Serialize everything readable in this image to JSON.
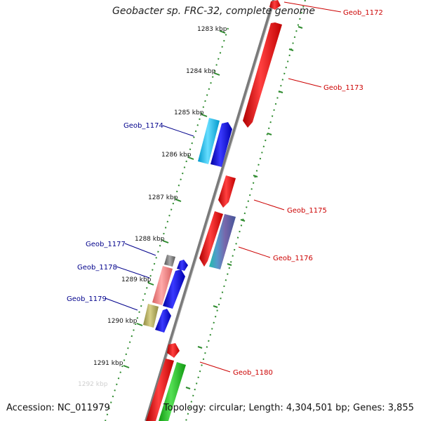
{
  "title": "Geobacter sp. FRC-32, complete genome",
  "accession": "Accession: NC_011979",
  "topology": "Topology: circular; Length: 4,304,501 bp; Genes: 3,855",
  "colors": {
    "backbone": "#7a7a7a",
    "tick": "#2e8b2e",
    "fwd_label": "#00008b",
    "rev_label": "#cc0000",
    "red_gene": "#ff0000",
    "blue_gene": "#0000ff",
    "cyan_gene": "#22bbee",
    "green_gene": "#33cc33"
  },
  "kbp_labels": [
    "1283 kbp",
    "1284 kbp",
    "1285 kbp",
    "1286 kbp",
    "1287 kbp",
    "1288 kbp",
    "1289 kbp",
    "1290 kbp",
    "1291 kbp",
    "1292 kbp"
  ],
  "gene_labels": {
    "geob_1172": "Geob_1172",
    "geob_1173": "Geob_1173",
    "geob_1174": "Geob_1174",
    "geob_1175": "Geob_1175",
    "geob_1176": "Geob_1176",
    "geob_1177": "Geob_1177",
    "geob_1178": "Geob_1178",
    "geob_1179": "Geob_1179",
    "geob_1180": "Geob_1180"
  }
}
